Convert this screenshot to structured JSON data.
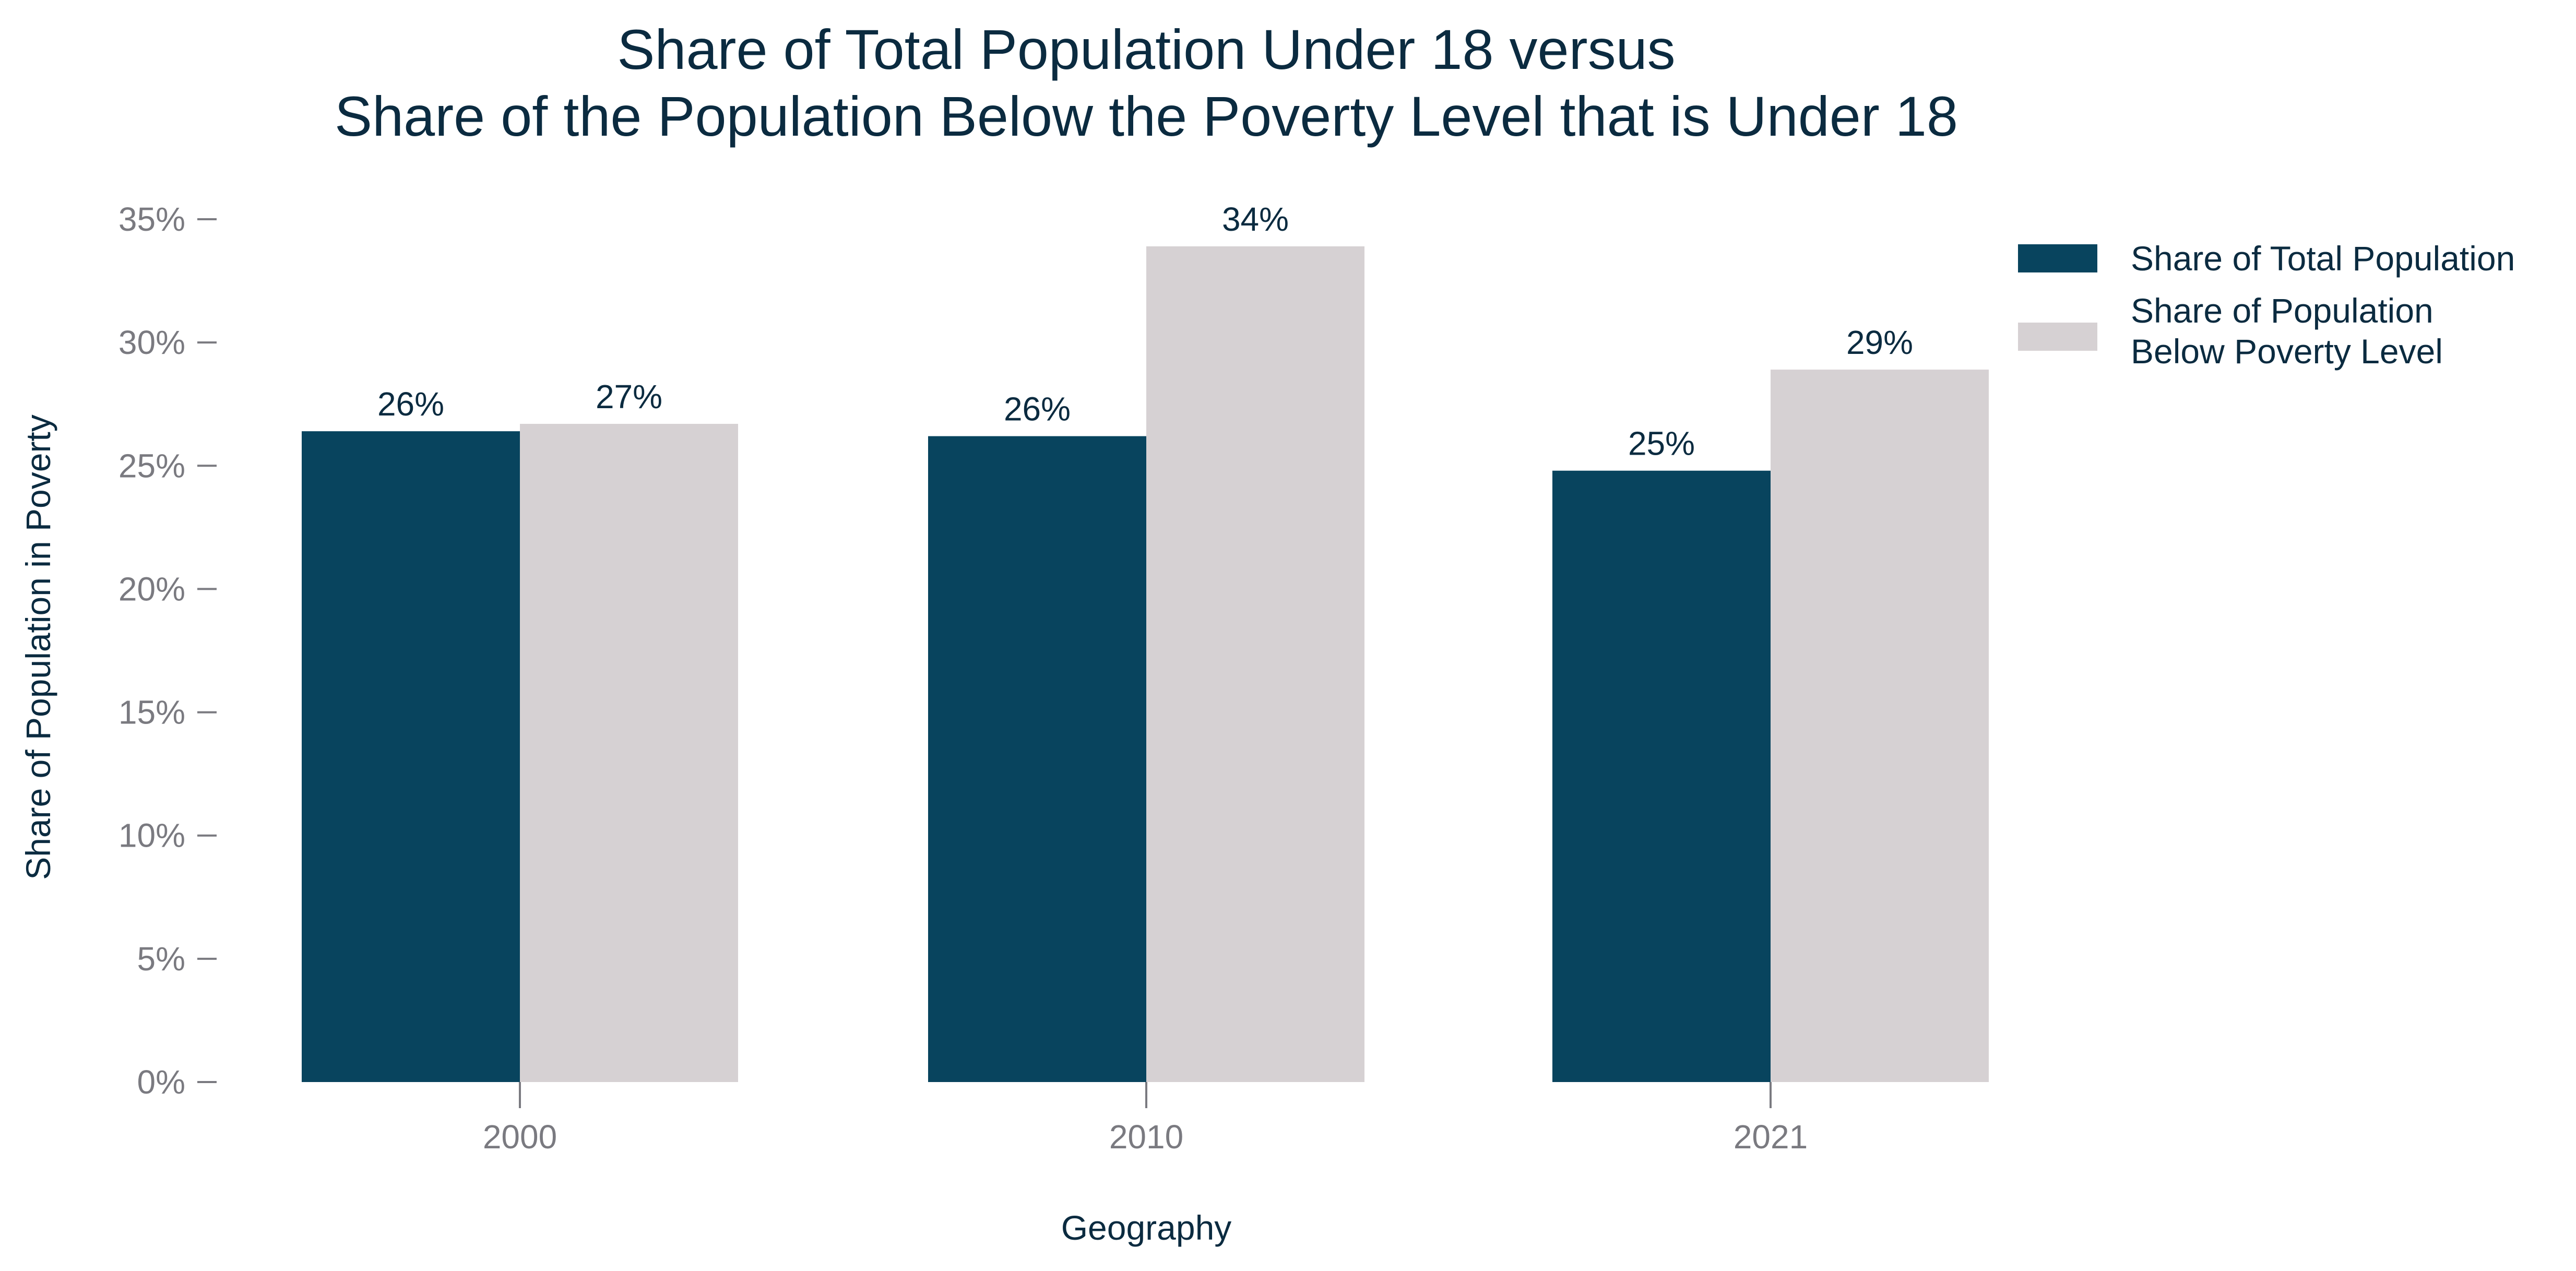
{
  "chart_data": {
    "type": "bar",
    "title": "Share of Total Population Under 18 versus\nShare of the Population Below the Poverty Level that is Under 18",
    "xlabel": "Geography",
    "ylabel": "Share of Population in Poverty",
    "categories": [
      "2000",
      "2010",
      "2021"
    ],
    "series": [
      {
        "name": "Share of Total Population",
        "values": [
          26.4,
          26.2,
          24.8
        ],
        "labels": [
          "26%",
          "26%",
          "25%"
        ],
        "color": "#08445e"
      },
      {
        "name": "Share of Population\nBelow Poverty Level",
        "values": [
          26.7,
          33.9,
          28.9
        ],
        "labels": [
          "27%",
          "34%",
          "29%"
        ],
        "color": "#d6d1d3"
      }
    ],
    "ylim": [
      0,
      35
    ],
    "yticks": [
      0,
      5,
      10,
      15,
      20,
      25,
      30,
      35
    ],
    "ytick_labels": [
      "0%",
      "5%",
      "10%",
      "15%",
      "20%",
      "25%",
      "30%",
      "35%"
    ],
    "grid": false,
    "legend_position": "top-right"
  }
}
